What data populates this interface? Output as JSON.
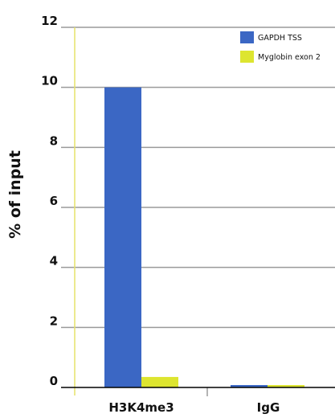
{
  "chart_data": {
    "type": "bar",
    "title": "",
    "xlabel": "",
    "ylabel": "% of input",
    "ylim": [
      0,
      12
    ],
    "yticks": [
      0,
      2,
      4,
      6,
      8,
      10,
      12
    ],
    "grid": true,
    "legend_position": "top-right",
    "categories": [
      "H3K4me3",
      "IgG"
    ],
    "series": [
      {
        "name": "GAPDH TSS",
        "values": [
          10,
          0.08
        ],
        "color": "#3b67c4"
      },
      {
        "name": "Myglobin exon 2",
        "values": [
          0.35,
          0.08
        ],
        "color": "#dde530"
      }
    ],
    "colors": {
      "grid": "#9a9a9a",
      "yaxis": "#e6e26a",
      "xaxis": "#000000"
    }
  }
}
